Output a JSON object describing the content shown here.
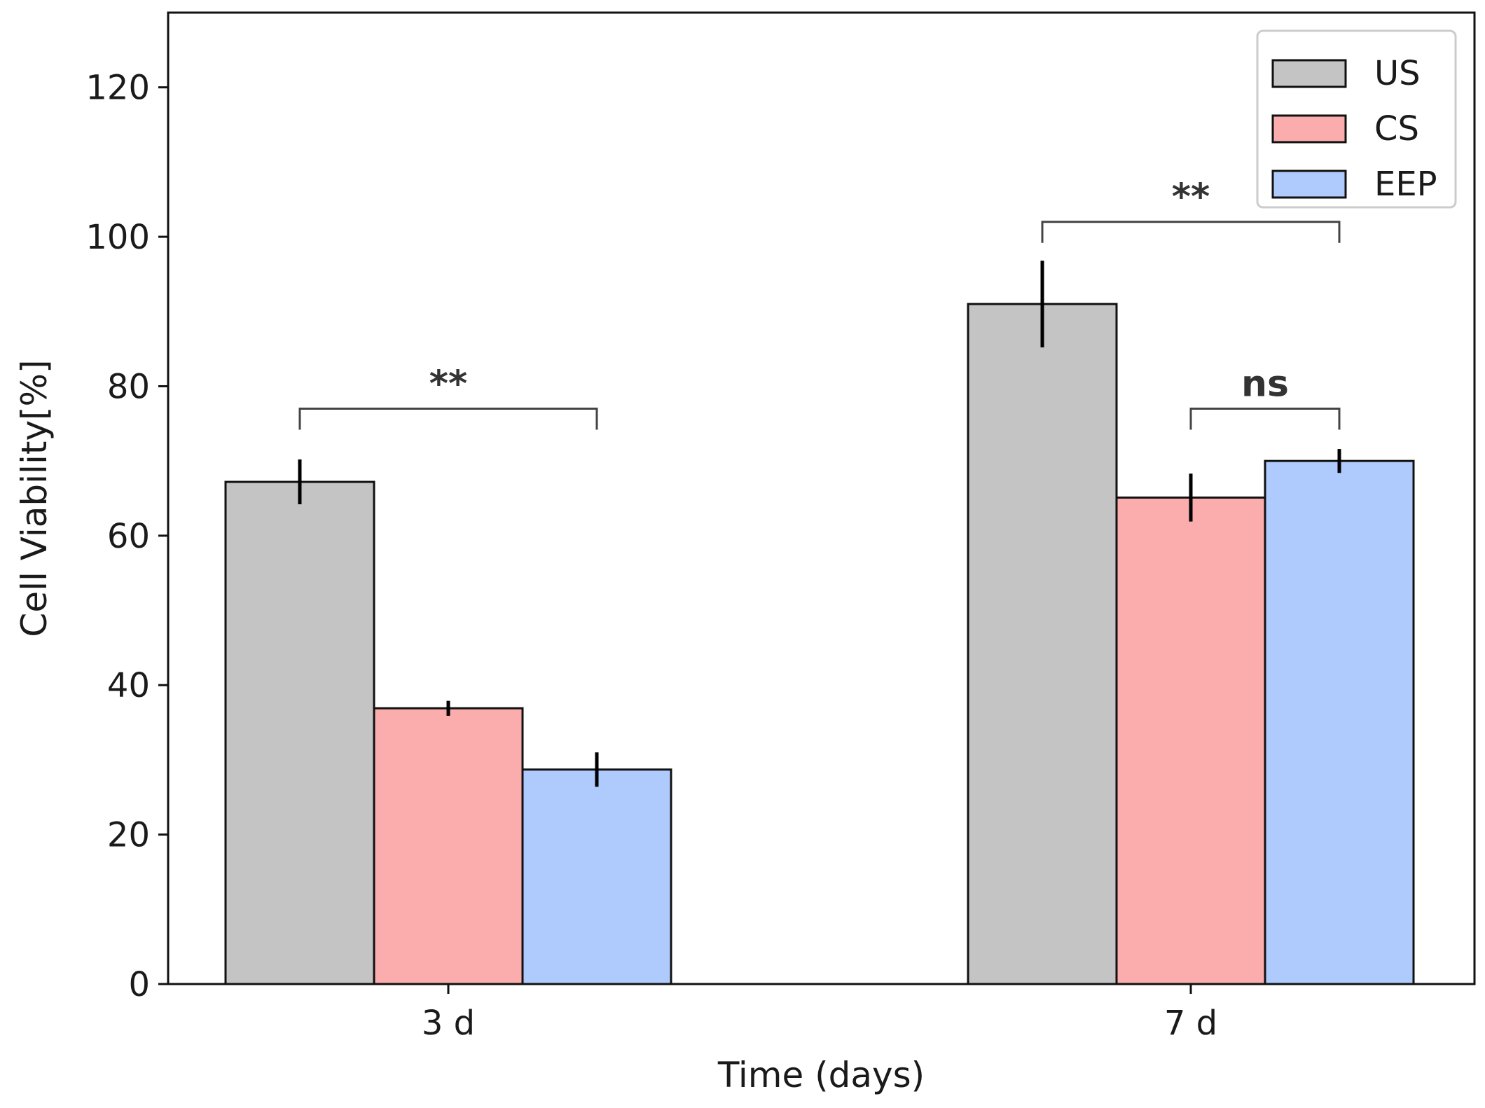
{
  "chart_data": {
    "type": "bar",
    "title": "",
    "xlabel": "Time (days)",
    "ylabel": "Cell Viability[%]",
    "ylim": [
      0,
      130
    ],
    "yticks": [
      0,
      20,
      40,
      60,
      80,
      100,
      120
    ],
    "categories": [
      "3 d",
      "7 d"
    ],
    "grid": false,
    "legend_position": "top-right",
    "series": [
      {
        "name": "US",
        "color": "#c4c4c4",
        "values": [
          67.2,
          91.0
        ],
        "errors": [
          3.0,
          5.8
        ]
      },
      {
        "name": "CS",
        "color": "#fbadae",
        "values": [
          36.9,
          65.1
        ],
        "errors": [
          1.0,
          3.2
        ]
      },
      {
        "name": "EEP",
        "color": "#afcbfd",
        "values": [
          28.7,
          70.0
        ],
        "errors": [
          2.3,
          1.6
        ]
      }
    ],
    "annotations": [
      {
        "label": "**",
        "category": "3 d",
        "from_series": "US",
        "to_series": "EEP",
        "level": 77
      },
      {
        "label": "**",
        "category": "7 d",
        "from_series": "US",
        "to_series": "EEP",
        "level": 102
      },
      {
        "label": "ns",
        "category": "7 d",
        "from_series": "CS",
        "to_series": "EEP",
        "level": 77
      }
    ]
  }
}
